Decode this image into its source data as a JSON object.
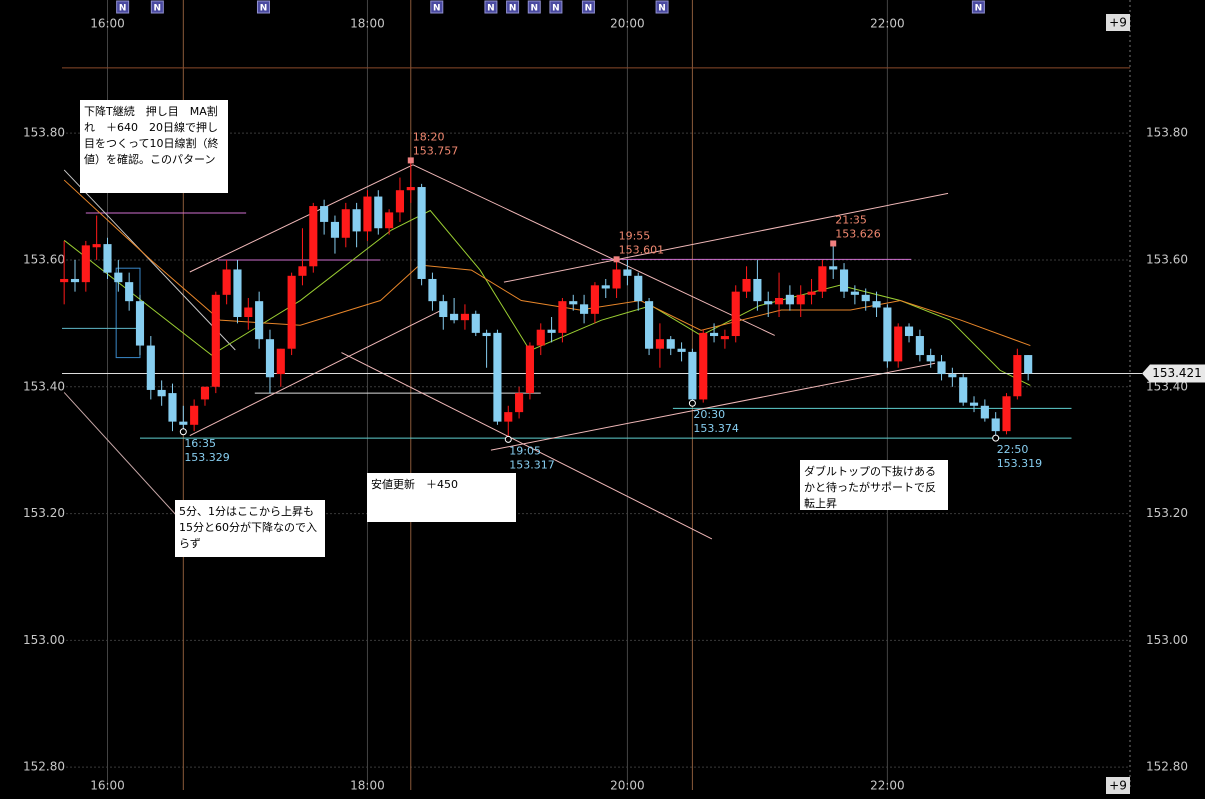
{
  "chart_data": {
    "type": "candlestick",
    "x": [
      "15:40",
      "15:45",
      "15:50",
      "15:55",
      "16:00",
      "16:05",
      "16:10",
      "16:15",
      "16:20",
      "16:25",
      "16:30",
      "16:35",
      "16:40",
      "16:45",
      "16:50",
      "16:55",
      "17:00",
      "17:05",
      "17:10",
      "17:15",
      "17:20",
      "17:25",
      "17:30",
      "17:35",
      "17:40",
      "17:45",
      "17:50",
      "17:55",
      "18:00",
      "18:05",
      "18:10",
      "18:15",
      "18:20",
      "18:25",
      "18:30",
      "18:35",
      "18:40",
      "18:45",
      "18:50",
      "18:55",
      "19:00",
      "19:05",
      "19:10",
      "19:15",
      "19:20",
      "19:25",
      "19:30",
      "19:35",
      "19:40",
      "19:45",
      "19:50",
      "19:55",
      "20:00",
      "20:05",
      "20:10",
      "20:15",
      "20:20",
      "20:25",
      "20:30",
      "20:35",
      "20:40",
      "20:45",
      "20:50",
      "20:55",
      "21:00",
      "21:05",
      "21:10",
      "21:15",
      "21:20",
      "21:25",
      "21:30",
      "21:35",
      "21:40",
      "21:45",
      "21:50",
      "21:55",
      "22:00",
      "22:05",
      "22:10",
      "22:15",
      "22:20",
      "22:25",
      "22:30",
      "22:35",
      "22:40",
      "22:45",
      "22:50",
      "22:55",
      "23:00",
      "23:05"
    ],
    "open": [
      153.565,
      153.57,
      153.565,
      153.62,
      153.625,
      153.58,
      153.565,
      153.535,
      153.465,
      153.395,
      153.39,
      153.345,
      153.34,
      153.38,
      153.4,
      153.545,
      153.585,
      153.51,
      153.535,
      153.475,
      153.42,
      153.46,
      153.575,
      153.59,
      153.685,
      153.66,
      153.635,
      153.68,
      153.645,
      153.7,
      153.65,
      153.675,
      153.71,
      153.715,
      153.57,
      153.535,
      153.515,
      153.505,
      153.515,
      153.485,
      153.485,
      153.345,
      153.36,
      153.39,
      153.465,
      153.49,
      153.485,
      153.535,
      153.53,
      153.515,
      153.56,
      153.555,
      153.585,
      153.575,
      153.535,
      153.46,
      153.475,
      153.46,
      153.455,
      153.38,
      153.485,
      153.475,
      153.48,
      153.55,
      153.57,
      153.535,
      153.53,
      153.545,
      153.53,
      153.545,
      153.55,
      153.59,
      153.585,
      153.55,
      153.545,
      153.535,
      153.525,
      153.44,
      153.495,
      153.48,
      153.45,
      153.44,
      153.42,
      153.415,
      153.375,
      153.37,
      153.35,
      153.33,
      153.385,
      153.45
    ],
    "high": [
      153.63,
      153.6,
      153.63,
      153.67,
      153.635,
      153.6,
      153.58,
      153.545,
      153.48,
      153.41,
      153.405,
      153.37,
      153.38,
      153.4,
      153.55,
      153.6,
      153.6,
      153.54,
      153.55,
      153.49,
      153.46,
      153.58,
      153.65,
      153.69,
      153.695,
      153.67,
      153.69,
      153.69,
      153.71,
      153.71,
      153.68,
      153.73,
      153.757,
      153.72,
      153.58,
      153.545,
      153.54,
      153.53,
      153.52,
      153.49,
      153.49,
      153.37,
      153.4,
      153.47,
      153.5,
      153.51,
      153.54,
      153.545,
      153.545,
      153.565,
      153.57,
      153.601,
      153.6,
      153.58,
      153.54,
      153.5,
      153.48,
      153.47,
      153.46,
      153.49,
      153.5,
      153.49,
      153.56,
      153.59,
      153.6,
      153.55,
      153.58,
      153.56,
      153.56,
      153.57,
      153.6,
      153.626,
      153.595,
      153.56,
      153.555,
      153.55,
      153.53,
      153.5,
      153.5,
      153.49,
      153.46,
      153.45,
      153.43,
      153.42,
      153.385,
      153.38,
      153.36,
      153.39,
      153.46,
      153.45
    ],
    "low": [
      153.53,
      153.55,
      153.55,
      153.6,
      153.57,
      153.55,
      153.52,
      153.45,
      153.38,
      153.37,
      153.33,
      153.329,
      153.33,
      153.37,
      153.39,
      153.53,
      153.5,
      153.49,
      153.46,
      153.39,
      153.4,
      153.45,
      153.56,
      153.58,
      153.64,
      153.61,
      153.62,
      153.62,
      153.63,
      153.64,
      153.64,
      153.66,
      153.69,
      153.56,
      153.52,
      153.49,
      153.5,
      153.49,
      153.48,
      153.43,
      153.34,
      153.317,
      153.35,
      153.38,
      153.45,
      153.47,
      153.47,
      153.52,
      153.5,
      153.5,
      153.54,
      153.54,
      153.56,
      153.52,
      153.45,
      153.43,
      153.45,
      153.44,
      153.374,
      153.375,
      153.47,
      153.46,
      153.47,
      153.54,
      153.52,
      153.51,
      153.51,
      153.52,
      153.51,
      153.53,
      153.54,
      153.57,
      153.54,
      153.53,
      153.52,
      153.51,
      153.43,
      153.43,
      153.47,
      153.44,
      153.43,
      153.41,
      153.4,
      153.37,
      153.36,
      153.345,
      153.319,
      153.325,
      153.38,
      153.41
    ],
    "close": [
      153.57,
      153.565,
      153.623,
      153.625,
      153.58,
      153.565,
      153.535,
      153.465,
      153.395,
      153.385,
      153.345,
      153.34,
      153.37,
      153.4,
      153.545,
      153.585,
      153.51,
      153.525,
      153.475,
      153.415,
      153.46,
      153.575,
      153.59,
      153.685,
      153.66,
      153.635,
      153.68,
      153.645,
      153.7,
      153.65,
      153.675,
      153.71,
      153.715,
      153.57,
      153.535,
      153.51,
      153.505,
      153.515,
      153.485,
      153.48,
      153.345,
      153.36,
      153.39,
      153.465,
      153.49,
      153.485,
      153.535,
      153.53,
      153.515,
      153.56,
      153.555,
      153.585,
      153.575,
      153.535,
      153.46,
      153.475,
      153.46,
      153.455,
      153.38,
      153.485,
      153.48,
      153.48,
      153.55,
      153.57,
      153.535,
      153.53,
      153.54,
      153.53,
      153.545,
      153.55,
      153.59,
      153.585,
      153.55,
      153.545,
      153.535,
      153.525,
      153.44,
      153.495,
      153.48,
      153.45,
      153.44,
      153.42,
      153.415,
      153.375,
      153.37,
      153.35,
      153.33,
      153.385,
      153.45,
      153.421
    ],
    "up_color": "#ff1a1a",
    "down_color": "#87cef0",
    "xlim": [
      "15:39",
      "23:52"
    ],
    "xticks": [
      "16:00",
      "18:00",
      "20:00",
      "22:00"
    ],
    "ylim": [
      152.764,
      154.01
    ],
    "yticks": [
      {
        "value": 152.8,
        "label": "152.80"
      },
      {
        "value": 153,
        "label": "153.00"
      },
      {
        "value": 153.2,
        "label": "153.20"
      },
      {
        "value": 153.4,
        "label": "153.40"
      },
      {
        "value": 153.6,
        "label": "153.60"
      },
      {
        "value": 153.8,
        "label": "153.80"
      }
    ],
    "grid": true,
    "ma_lines": [
      {
        "color": "#9acd32",
        "x": [
          "15:40",
          "16:48",
          "17:29",
          "18:11",
          "18:29",
          "18:52",
          "19:15",
          "19:48",
          "20:11",
          "20:34",
          "21:01",
          "21:38",
          "22:06",
          "22:29",
          "22:52",
          "23:06"
        ],
        "values": [
          153.631,
          153.45,
          153.536,
          153.647,
          153.678,
          153.584,
          153.457,
          153.505,
          153.528,
          153.481,
          153.528,
          153.56,
          153.536,
          153.505,
          153.426,
          153.402
        ]
      },
      {
        "color": "#e8862a",
        "x": [
          "15:40",
          "16:20",
          "16:52",
          "17:29",
          "18:06",
          "18:24",
          "18:48",
          "19:11",
          "19:38",
          "20:06",
          "20:34",
          "21:11",
          "21:43",
          "22:06",
          "22:34",
          "23:06"
        ],
        "values": [
          153.726,
          153.6,
          153.505,
          153.497,
          153.536,
          153.592,
          153.584,
          153.536,
          153.521,
          153.536,
          153.489,
          153.521,
          153.521,
          153.536,
          153.505,
          153.465
        ]
      }
    ],
    "hlines": [
      {
        "value": 153.903,
        "from": "15:39",
        "to": "23:52",
        "color": "#8a4a2a"
      },
      {
        "value": 153.674,
        "from": "15:50",
        "to": "17:04",
        "color": "#d070d0"
      },
      {
        "value": 153.6,
        "from": "16:51",
        "to": "18:06",
        "color": "#d070d0"
      },
      {
        "value": 153.601,
        "from": "19:48",
        "to": "22:11",
        "color": "#d070d0"
      },
      {
        "value": 153.492,
        "from": "15:39",
        "to": "16:15",
        "color": "#5fb8c8"
      },
      {
        "value": 153.39,
        "from": "17:08",
        "to": "19:20",
        "color": "#dddddd"
      },
      {
        "value": 153.366,
        "from": "20:21",
        "to": "23:25",
        "color": "#5fd0d0"
      },
      {
        "value": 153.319,
        "from": "16:15",
        "to": "23:25",
        "color": "#5fd0d0"
      }
    ],
    "trendlines": [
      {
        "x": [
          "15:40",
          "16:59"
        ],
        "values": [
          153.742,
          153.458
        ],
        "color": "#c8c8c8"
      },
      {
        "x": [
          "16:38",
          "18:21"
        ],
        "values": [
          153.581,
          153.75
        ],
        "color": "#f0b8b8"
      },
      {
        "x": [
          "16:38",
          "18:36"
        ],
        "values": [
          153.323,
          153.524
        ],
        "color": "#f0b8b8"
      },
      {
        "x": [
          "18:21",
          "21:08"
        ],
        "values": [
          153.75,
          153.481
        ],
        "color": "#f0b8b8"
      },
      {
        "x": [
          "19:03",
          "22:28"
        ],
        "values": [
          153.565,
          153.705
        ],
        "color": "#f0b8b8"
      },
      {
        "x": [
          "18:57",
          "22:22"
        ],
        "values": [
          153.3,
          153.437
        ],
        "color": "#f0b8b8"
      },
      {
        "x": [
          "17:48",
          "20:39"
        ],
        "values": [
          153.454,
          153.16
        ],
        "color": "#f0b8b8"
      },
      {
        "x": [
          "15:40",
          "16:34"
        ],
        "values": [
          153.391,
          153.189
        ],
        "color": "#c8a8a8"
      }
    ],
    "boxes": [
      {
        "from": "16:04",
        "to": "16:15",
        "top": 153.587,
        "bottom": 153.446,
        "color": "#3a88c8"
      }
    ],
    "vlines": [
      "16:35",
      "18:20",
      "20:30"
    ],
    "high_markers": [
      {
        "time": "18:20",
        "price": 153.757
      },
      {
        "time": "19:55",
        "price": 153.601
      },
      {
        "time": "21:35",
        "price": 153.626
      }
    ],
    "low_markers": [
      {
        "time": "16:35",
        "price": 153.329
      },
      {
        "time": "19:05",
        "price": 153.317
      },
      {
        "time": "20:30",
        "price": 153.374
      },
      {
        "time": "22:50",
        "price": 153.319
      }
    ],
    "news": [
      {
        "time": "16:07",
        "label": "N"
      },
      {
        "time": "16:23",
        "label": "N"
      },
      {
        "time": "17:12",
        "label": "N"
      },
      {
        "time": "18:32",
        "label": "N"
      },
      {
        "time": "18:57",
        "label": "N"
      },
      {
        "time": "19:07",
        "label": "N"
      },
      {
        "time": "19:17",
        "label": "N"
      },
      {
        "time": "19:27",
        "label": "N"
      },
      {
        "time": "19:42",
        "label": "N"
      },
      {
        "time": "20:16",
        "label": "N"
      },
      {
        "time": "22:42",
        "label": "N"
      }
    ],
    "last_price": 153.421,
    "offset_label": "+9",
    "annotations": [
      "下降T継続　押し目　MA割れ　＋640　20日線で押し目をつくって10日線割（終値）を確認。このパターン",
      "5分、1分はここから上昇も15分と60分が下降なので入らず",
      "安値更新　＋450",
      "ダブルトップの下抜けあるかと待ったがサポートで反転上昇"
    ]
  }
}
